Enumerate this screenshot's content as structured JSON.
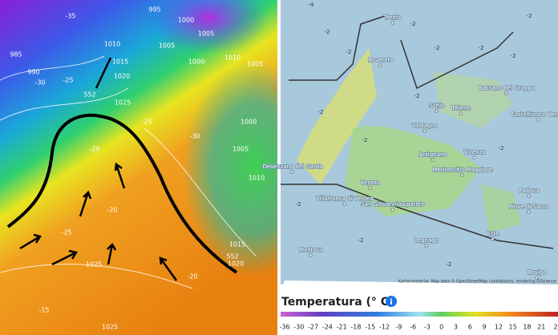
{
  "left_map": {
    "isobar_labels": [
      995,
      1000,
      1005,
      1010,
      1005,
      1000,
      1010,
      1005,
      1015,
      1020,
      1025,
      985,
      990,
      1000,
      1005,
      1010,
      1015,
      1020,
      1025,
      1025,
      552,
      552
    ],
    "temperature_labels": [
      -35,
      -30,
      -25,
      -20,
      -25,
      -30,
      -20,
      -25,
      -20,
      -15
    ]
  },
  "right_map": {
    "cities": [
      "Trento",
      "Rovereto",
      "Schio",
      "Thiene",
      "Bassano del Grappa",
      "Castelfranco Veneto",
      "Valdagno",
      "Arzignano",
      "Vicenza",
      "Montecchio Maggiore",
      "Verona",
      "Villafranca di Verona",
      "San Giovanni Lupatoto",
      "Desenzano del Garda",
      "Legnago",
      "Mantova",
      "Este",
      "Padova",
      "Piove di Sacco",
      "Rovigo"
    ],
    "temperature_labels": [
      -4,
      -2,
      -2,
      -2,
      -2,
      -2,
      -2,
      -2,
      -2,
      -2,
      -2,
      -2,
      -2,
      -2,
      -2
    ],
    "attribution": "Kartenmaterial: Map data © OpenStreetMap contributors, rendering GIScience"
  },
  "legend": {
    "title": "Temperatura (° C)",
    "ticks": [
      "-36",
      "-30",
      "-27",
      "-24",
      "-21",
      "-18",
      "-15",
      "-12",
      "-9",
      "-6",
      "-3",
      "0",
      "3",
      "6",
      "9",
      "12",
      "15",
      "18",
      "21",
      "2"
    ]
  }
}
